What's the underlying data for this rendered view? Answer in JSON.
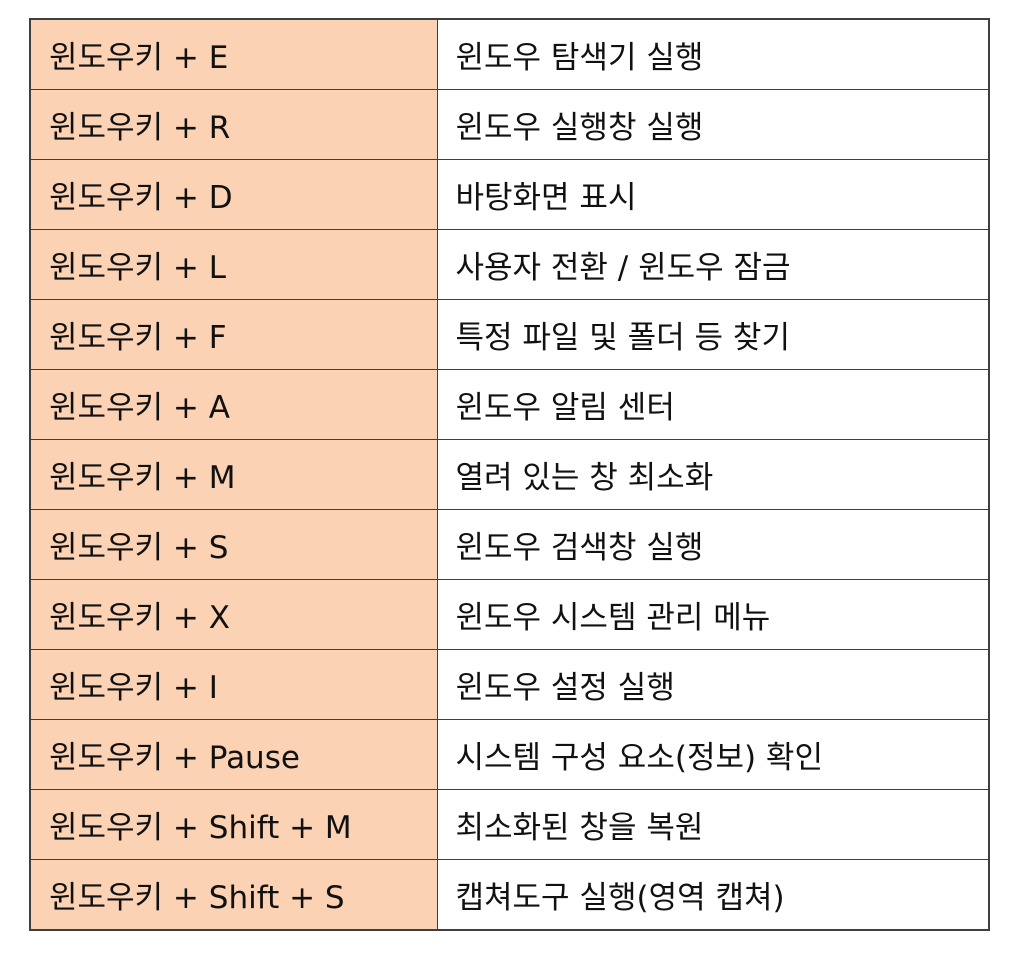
{
  "colors": {
    "key_cell_bg": "#fbd2b4",
    "desc_cell_bg": "#ffffff",
    "border": "#3f3f3f",
    "text": "#111111"
  },
  "rows": [
    {
      "shortcut": "윈도우키 + E",
      "description": "윈도우 탐색기 실행"
    },
    {
      "shortcut": "윈도우키 + R",
      "description": "윈도우 실행창 실행"
    },
    {
      "shortcut": "윈도우키 + D",
      "description": "바탕화면 표시"
    },
    {
      "shortcut": "윈도우키 + L",
      "description": "사용자 전환 / 윈도우 잠금"
    },
    {
      "shortcut": "윈도우키 + F",
      "description": "특정 파일 및 폴더 등 찾기"
    },
    {
      "shortcut": "윈도우키 + A",
      "description": "윈도우 알림 센터"
    },
    {
      "shortcut": "윈도우키 + M",
      "description": "열려 있는 창 최소화"
    },
    {
      "shortcut": "윈도우키 + S",
      "description": "윈도우 검색창 실행"
    },
    {
      "shortcut": "윈도우키 + X",
      "description": "윈도우 시스템 관리 메뉴"
    },
    {
      "shortcut": "윈도우키 + I",
      "description": "윈도우 설정 실행"
    },
    {
      "shortcut": "윈도우키 + Pause",
      "description": "시스템 구성 요소(정보) 확인"
    },
    {
      "shortcut": "윈도우키 + Shift + M",
      "description": "최소화된 창을 복원"
    },
    {
      "shortcut": "윈도우키 + Shift + S",
      "description": "캡쳐도구 실행(영역 캡쳐)"
    }
  ]
}
